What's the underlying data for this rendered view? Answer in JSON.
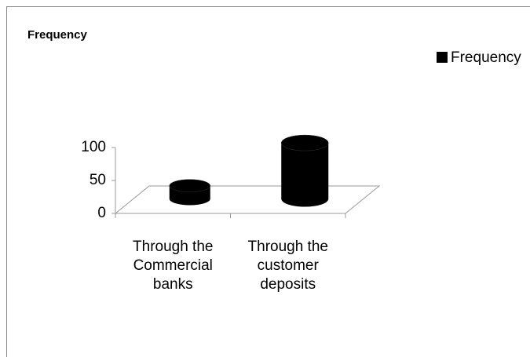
{
  "chart_data": {
    "type": "bar3d",
    "title": "Frequency",
    "categories": [
      "Through the Commercial banks",
      "Through the customer deposits"
    ],
    "series": [
      {
        "name": "Frequency",
        "color": "#000000",
        "values": [
          20,
          85
        ]
      }
    ],
    "ylim": [
      0,
      100
    ],
    "yticks": [
      0,
      50,
      100
    ],
    "legend": "right"
  }
}
